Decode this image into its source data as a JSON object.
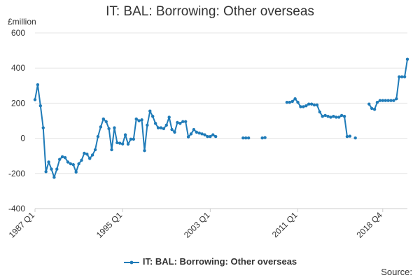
{
  "chart_data": {
    "type": "line",
    "title": "IT: BAL: Borrowing: Other overseas",
    "ylabel": "£million",
    "ylim": [
      -400,
      600
    ],
    "yticks": [
      -400,
      -200,
      0,
      200,
      400,
      600
    ],
    "xticks": [
      "1987 Q1",
      "1995 Q1",
      "2003 Q1",
      "2011 Q1",
      "2018 Q4"
    ],
    "x_start": "1987 Q1",
    "x_end": "2018 Q4",
    "frequency": "quarterly",
    "grid": true,
    "legend_position": "bottom-center",
    "line_color": "#1f7bb8",
    "series": [
      {
        "name": "IT: BAL: Borrowing: Other overseas",
        "values": [
          220,
          305,
          185,
          60,
          -190,
          -135,
          -175,
          -222,
          -175,
          -120,
          -105,
          -110,
          -135,
          -145,
          -150,
          -192,
          -145,
          -125,
          -85,
          -90,
          -115,
          -95,
          -65,
          10,
          65,
          110,
          95,
          55,
          -65,
          60,
          -25,
          -28,
          -32,
          20,
          -33,
          -5,
          -5,
          110,
          100,
          105,
          -70,
          75,
          155,
          125,
          85,
          60,
          60,
          55,
          75,
          120,
          50,
          35,
          90,
          85,
          95,
          95,
          8,
          25,
          50,
          35,
          30,
          25,
          20,
          10,
          10,
          20,
          10,
          null,
          null,
          null,
          null,
          null,
          null,
          null,
          null,
          null,
          2,
          2,
          2,
          null,
          null,
          null,
          null,
          2,
          4,
          null,
          null,
          null,
          null,
          null,
          null,
          null,
          205,
          205,
          210,
          225,
          205,
          180,
          180,
          185,
          195,
          195,
          190,
          190,
          150,
          125,
          130,
          125,
          120,
          125,
          120,
          120,
          130,
          125,
          10,
          12,
          null,
          2,
          null,
          null,
          null,
          null,
          195,
          170,
          165,
          205,
          215,
          215,
          215,
          215,
          215,
          215,
          225,
          350,
          350,
          350,
          450
        ]
      }
    ]
  },
  "footer": {
    "source_label": "Source:"
  }
}
